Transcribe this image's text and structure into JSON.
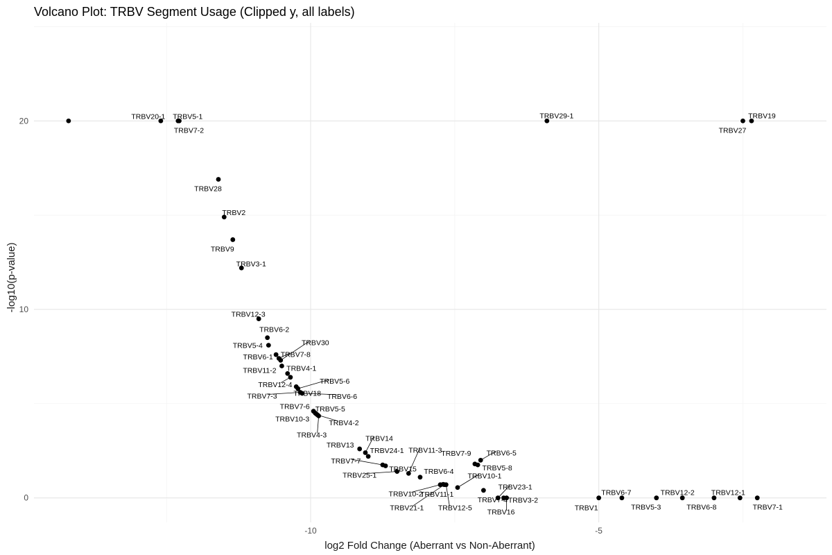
{
  "chart_data": {
    "type": "scatter",
    "title": "Volcano Plot: TRBV Segment Usage (Clipped y, all labels)",
    "xlabel": "log2 Fold Change (Aberrant vs Non-Aberrant)",
    "ylabel": "-log10(p-value)",
    "xlim": [
      -14.8,
      -1.05
    ],
    "ylim": [
      -1.3,
      25.2
    ],
    "x_ticks": [
      -10,
      -5
    ],
    "y_ticks": [
      0,
      10,
      20
    ],
    "grid": true,
    "point_color": "#000000",
    "points": [
      {
        "x": -14.2,
        "y": 20.0,
        "label": ""
      },
      {
        "x": -12.6,
        "y": 20.0,
        "label": "TRBV20-1"
      },
      {
        "x": -12.3,
        "y": 20.0,
        "label": "TRBV5-1"
      },
      {
        "x": -12.28,
        "y": 20.0,
        "label": "TRBV7-2"
      },
      {
        "x": -11.6,
        "y": 16.9,
        "label": "TRBV28"
      },
      {
        "x": -11.5,
        "y": 14.9,
        "label": "TRBV2"
      },
      {
        "x": -11.35,
        "y": 13.7,
        "label": "TRBV9"
      },
      {
        "x": -11.2,
        "y": 12.2,
        "label": "TRBV3-1"
      },
      {
        "x": -10.9,
        "y": 9.5,
        "label": "TRBV12-3"
      },
      {
        "x": -10.75,
        "y": 8.5,
        "label": "TRBV6-2"
      },
      {
        "x": -10.73,
        "y": 8.1,
        "label": "TRBV5-4"
      },
      {
        "x": -10.6,
        "y": 7.6,
        "label": "TRBV6-1"
      },
      {
        "x": -10.55,
        "y": 7.4,
        "label": "TRBV7-8"
      },
      {
        "x": -10.52,
        "y": 7.3,
        "label": "TRBV30"
      },
      {
        "x": -10.5,
        "y": 7.0,
        "label": "TRBV11-2"
      },
      {
        "x": -10.4,
        "y": 6.6,
        "label": "TRBV4-1"
      },
      {
        "x": -10.35,
        "y": 6.4,
        "label": "TRBV12-4"
      },
      {
        "x": -10.25,
        "y": 5.9,
        "label": "TRBV18"
      },
      {
        "x": -10.22,
        "y": 5.8,
        "label": "TRBV5-6"
      },
      {
        "x": -10.18,
        "y": 5.6,
        "label": "TRBV7-3"
      },
      {
        "x": -10.15,
        "y": 5.55,
        "label": "TRBV6-6"
      },
      {
        "x": -9.95,
        "y": 4.6,
        "label": "TRBV7-6"
      },
      {
        "x": -9.92,
        "y": 4.5,
        "label": "TRBV10-3"
      },
      {
        "x": -9.9,
        "y": 4.45,
        "label": "TRBV5-5"
      },
      {
        "x": -9.88,
        "y": 4.4,
        "label": "TRBV4-2"
      },
      {
        "x": -9.86,
        "y": 4.35,
        "label": "TRBV4-3"
      },
      {
        "x": -9.15,
        "y": 2.6,
        "label": "TRBV13"
      },
      {
        "x": -9.05,
        "y": 2.4,
        "label": "TRBV14"
      },
      {
        "x": -9.0,
        "y": 2.2,
        "label": "TRBV24-1"
      },
      {
        "x": -8.75,
        "y": 1.75,
        "label": "TRBV7-7"
      },
      {
        "x": -8.7,
        "y": 1.7,
        "label": "TRBV15"
      },
      {
        "x": -8.5,
        "y": 1.4,
        "label": "TRBV25-1"
      },
      {
        "x": -8.3,
        "y": 1.3,
        "label": "TRBV11-3"
      },
      {
        "x": -8.1,
        "y": 1.1,
        "label": "TRBV6-4"
      },
      {
        "x": -7.75,
        "y": 0.7,
        "label": "TRBV10-2"
      },
      {
        "x": -7.7,
        "y": 0.72,
        "label": "TRBV11-1"
      },
      {
        "x": -7.68,
        "y": 0.7,
        "label": "TRBV21-1"
      },
      {
        "x": -7.65,
        "y": 0.7,
        "label": "TRBV12-5"
      },
      {
        "x": -7.45,
        "y": 0.55,
        "label": "TRBV10-1"
      },
      {
        "x": -7.1,
        "y": 1.75,
        "label": "TRBV5-8"
      },
      {
        "x": -7.05,
        "y": 2.0,
        "label": "TRBV6-5"
      },
      {
        "x": -7.15,
        "y": 1.8,
        "label": "TRBV7-9"
      },
      {
        "x": -7.0,
        "y": 0.4,
        "label": "TRBV7-4"
      },
      {
        "x": -6.75,
        "y": 0.0,
        "label": "TRBV23-1"
      },
      {
        "x": -6.65,
        "y": 0.0,
        "label": "TRBV3-2"
      },
      {
        "x": -6.6,
        "y": 0.0,
        "label": "TRBV16"
      },
      {
        "x": -5.0,
        "y": 0.0,
        "label": "TRBV1"
      },
      {
        "x": -4.6,
        "y": 0.0,
        "label": "TRBV6-7"
      },
      {
        "x": -4.0,
        "y": 0.0,
        "label": "TRBV5-3"
      },
      {
        "x": -3.55,
        "y": 0.0,
        "label": "TRBV12-2"
      },
      {
        "x": -3.0,
        "y": 0.0,
        "label": "TRBV6-8"
      },
      {
        "x": -2.55,
        "y": 0.0,
        "label": "TRBV12-1"
      },
      {
        "x": -2.25,
        "y": 0.0,
        "label": "TRBV7-1"
      },
      {
        "x": -5.9,
        "y": 20.0,
        "label": "TRBV29-1"
      },
      {
        "x": -2.5,
        "y": 20.0,
        "label": "TRBV27"
      },
      {
        "x": -2.35,
        "y": 20.0,
        "label": "TRBV19"
      }
    ]
  }
}
